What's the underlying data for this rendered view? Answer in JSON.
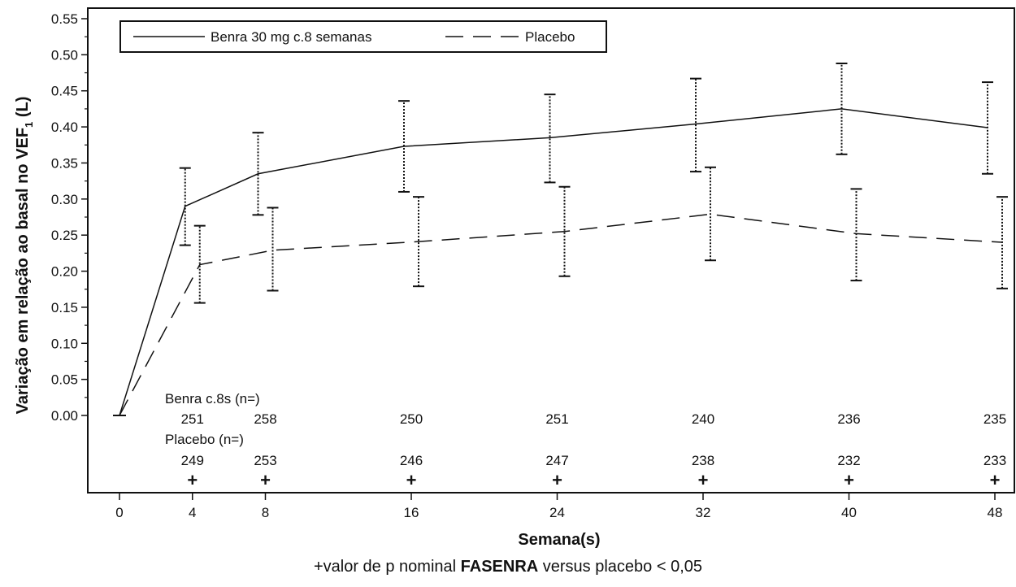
{
  "chart_data": {
    "type": "line",
    "xlabel": "Semana(s)",
    "ylabel_main": "Variação em relação ao basal no VEF",
    "ylabel_sub": "1",
    "ylabel_end": " (L)",
    "x": [
      0,
      4,
      8,
      16,
      24,
      32,
      40,
      48
    ],
    "xticks": [
      "0",
      "4",
      "8",
      "16",
      "24",
      "32",
      "40",
      "48"
    ],
    "yticks": [
      "0.00",
      "0.05",
      "0.10",
      "0.15",
      "0.20",
      "0.25",
      "0.30",
      "0.35",
      "0.40",
      "0.45",
      "0.50",
      "0.55"
    ],
    "ylim": [
      0,
      0.55
    ],
    "xlim": [
      0,
      48
    ],
    "legend": {
      "position": "top-left"
    },
    "series": [
      {
        "name": "Benra 30 mg c.8 semanas",
        "style": "solid",
        "x": [
          0,
          4,
          8,
          16,
          24,
          32,
          40,
          48
        ],
        "values": [
          0.0,
          0.29,
          0.335,
          0.373,
          0.385,
          0.404,
          0.425,
          0.399
        ],
        "lower": [
          null,
          0.236,
          0.278,
          0.31,
          0.323,
          0.338,
          0.362,
          0.335
        ],
        "upper": [
          null,
          0.343,
          0.392,
          0.436,
          0.445,
          0.467,
          0.488,
          0.462
        ]
      },
      {
        "name": "Placebo",
        "style": "dashed",
        "x": [
          0,
          4,
          8,
          16,
          24,
          32,
          40,
          48
        ],
        "values": [
          0.0,
          0.209,
          0.229,
          0.241,
          0.255,
          0.279,
          0.252,
          0.24
        ],
        "lower": [
          null,
          0.156,
          0.173,
          0.179,
          0.193,
          0.215,
          0.187,
          0.176
        ],
        "upper": [
          null,
          0.263,
          0.288,
          0.303,
          0.317,
          0.344,
          0.314,
          0.303
        ]
      }
    ],
    "n_at_risk": {
      "benra_label": "Benra c.8s (n=)",
      "benra_n": [
        "251",
        "258",
        "250",
        "251",
        "240",
        "236",
        "235"
      ],
      "placebo_label": "Placebo (n=)",
      "placebo_n": [
        "249",
        "253",
        "246",
        "247",
        "238",
        "232",
        "233"
      ],
      "significance_marker": "+"
    }
  },
  "footnote": {
    "pre": "+valor de p nominal ",
    "bold": "FASENRA",
    "post": " versus placebo < 0,05"
  }
}
